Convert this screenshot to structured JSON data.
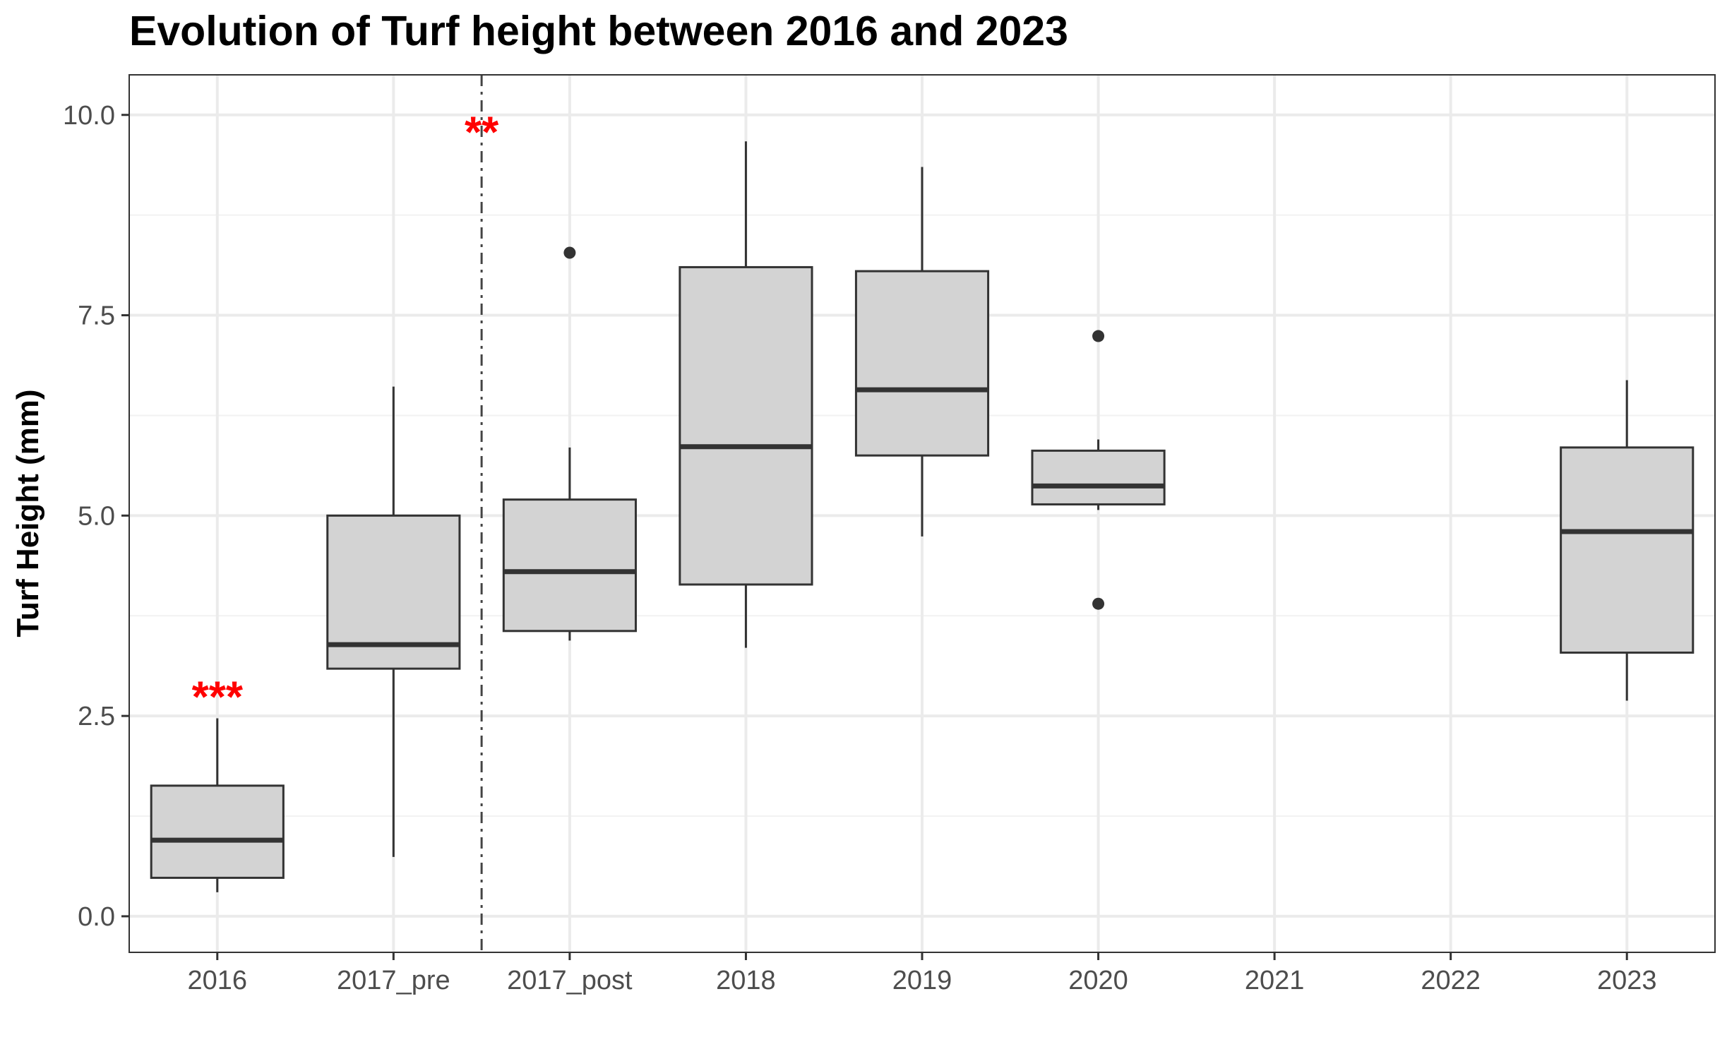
{
  "chart_data": {
    "type": "boxplot",
    "title": "Evolution of Turf height between 2016 and 2023",
    "xlabel": "",
    "ylabel": "Turf Height (mm)",
    "ylim": [
      -0.45,
      10.5
    ],
    "y_ticks": [
      0,
      2.5,
      5,
      7.5,
      10
    ],
    "y_tick_labels": [
      "0.0",
      "2.5",
      "5.0",
      "7.5",
      "10.0"
    ],
    "categories": [
      "2016",
      "2017_pre",
      "2017_post",
      "2018",
      "2019",
      "2020",
      "2021",
      "2022",
      "2023"
    ],
    "grid": true,
    "box_fill": "#d3d3d3",
    "line_color": "#333333",
    "boxes": [
      {
        "category": "2016",
        "min": 0.3,
        "q1": 0.48,
        "median": 0.95,
        "q3": 1.63,
        "max": 2.47,
        "outliers": []
      },
      {
        "category": "2017_pre",
        "min": 0.74,
        "q1": 3.09,
        "median": 3.39,
        "q3": 5.0,
        "max": 6.61,
        "outliers": []
      },
      {
        "category": "2017_post",
        "min": 3.44,
        "q1": 3.56,
        "median": 4.3,
        "q3": 5.2,
        "max": 5.85,
        "outliers": [
          8.28
        ]
      },
      {
        "category": "2018",
        "min": 3.35,
        "q1": 4.14,
        "median": 5.86,
        "q3": 8.1,
        "max": 9.67,
        "outliers": []
      },
      {
        "category": "2019",
        "min": 4.74,
        "q1": 5.75,
        "median": 6.57,
        "q3": 8.05,
        "max": 9.35,
        "outliers": []
      },
      {
        "category": "2020",
        "min": 5.07,
        "q1": 5.14,
        "median": 5.37,
        "q3": 5.81,
        "max": 5.95,
        "outliers": [
          7.24,
          3.9
        ]
      },
      {
        "category": "2023",
        "min": 2.69,
        "q1": 3.29,
        "median": 4.8,
        "q3": 5.85,
        "max": 6.69,
        "outliers": []
      }
    ],
    "annotations": [
      {
        "text": "***",
        "category": "2016",
        "y": 2.9,
        "color": "#ff0000"
      },
      {
        "text": "**",
        "category_between": [
          "2017_pre",
          "2017_post"
        ],
        "y": 9.95,
        "color": "#ff0000"
      }
    ],
    "reference_line": {
      "between": [
        "2017_pre",
        "2017_post"
      ],
      "style": "dashdot",
      "color": "#444444"
    }
  }
}
